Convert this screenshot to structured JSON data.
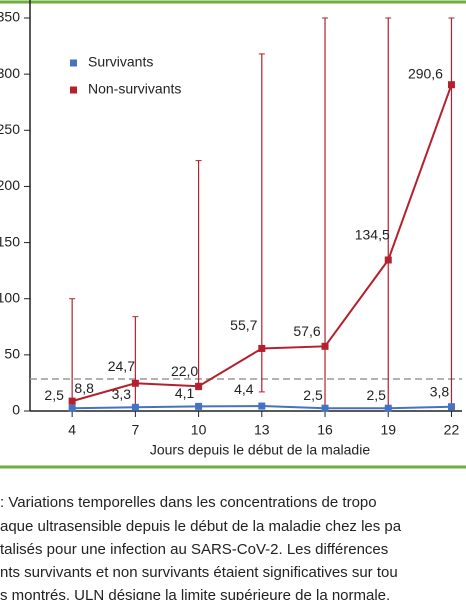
{
  "chart_data": {
    "type": "line",
    "x_label": "Jours depuis le début de la maladie",
    "x": [
      4,
      7,
      10,
      13,
      16,
      19,
      22
    ],
    "xlim": [
      2,
      22.5
    ],
    "xticks": [
      4,
      7,
      10,
      13,
      16,
      19,
      22
    ],
    "ylim": [
      0,
      350
    ],
    "yticks": [
      0,
      50,
      100,
      150,
      200,
      250,
      300,
      350
    ],
    "reference_line": {
      "value": 28.5,
      "color": "#999999"
    },
    "legend": "upper left",
    "series": [
      {
        "name": "Survivants",
        "color": "#4472c4",
        "values": [
          2.5,
          3.3,
          4.1,
          4.4,
          2.5,
          2.5,
          3.8
        ],
        "value_labels": [
          "2,5",
          "3,3",
          "4,1",
          "4,4",
          "2,5",
          "2,5",
          "3,8"
        ]
      },
      {
        "name": "Non-survivants",
        "color": "#b5202e",
        "values": [
          8.8,
          24.7,
          22.0,
          55.7,
          57.6,
          134.5,
          290.6
        ],
        "value_labels": [
          "8,8",
          "24,7",
          "22,0",
          "55,7",
          "57,6",
          "134,5",
          "290,6"
        ],
        "error_low": [
          4,
          5,
          19,
          17,
          3,
          3,
          3
        ],
        "error_high": [
          100,
          84,
          223,
          318,
          350,
          350,
          350
        ]
      }
    ]
  },
  "caption": {
    "lines": [
      ": Variations temporelles dans les concentrations de tropo",
      "aque ultrasensible depuis le début de la maladie chez les pa",
      "talisés pour une infection au SARS-CoV-2. Les différences",
      "nts survivants et non survivants étaient significatives sur tou",
      "s montrés. ULN désigne la limite supérieure de la normale."
    ]
  }
}
